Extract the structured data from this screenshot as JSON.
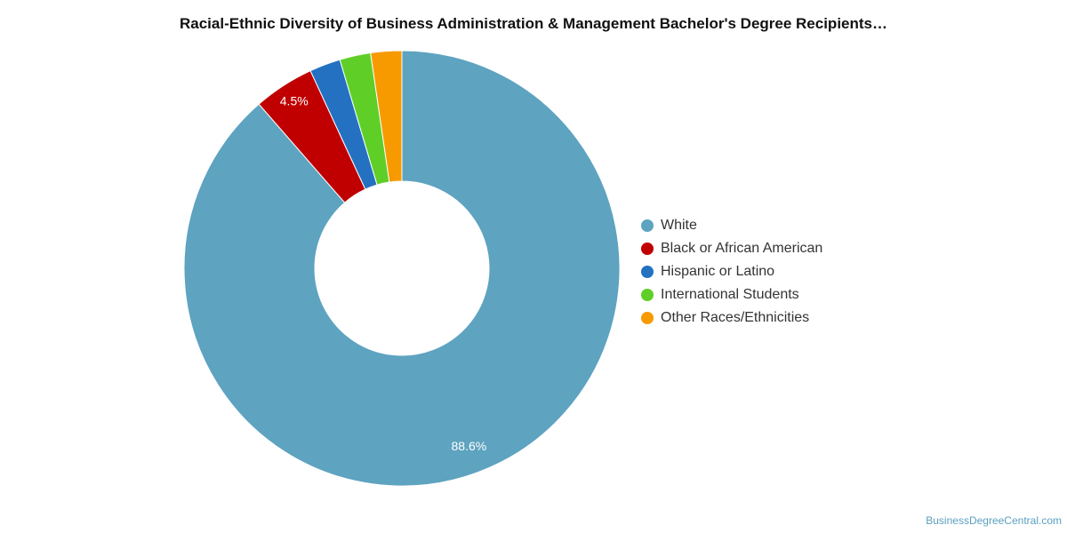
{
  "colors": {
    "background": "#ffffff",
    "title_text": "#111111",
    "legend_text": "#333333",
    "data_label_text": "#ffffff",
    "credit_text": "#5a9fc0"
  },
  "chart_data": {
    "type": "pie",
    "variant": "donut",
    "title": "Racial-Ethnic Diversity of Business Administration & Management Bachelor's Degree Recipients…",
    "legend_position": "right",
    "series": [
      {
        "name": "White",
        "value": 88.6,
        "color": "#5ea3c0",
        "label": "88.6%"
      },
      {
        "name": "Black or African American",
        "value": 4.5,
        "color": "#c00000",
        "label": "4.5%"
      },
      {
        "name": "Hispanic or Latino",
        "value": 2.3,
        "color": "#2471c2",
        "label": ""
      },
      {
        "name": "International Students",
        "value": 2.3,
        "color": "#5fcf27",
        "label": ""
      },
      {
        "name": "Other Races/Ethnicities",
        "value": 2.3,
        "color": "#f79a00",
        "label": ""
      }
    ]
  },
  "footer": {
    "credit": "BusinessDegreeCentral.com"
  }
}
